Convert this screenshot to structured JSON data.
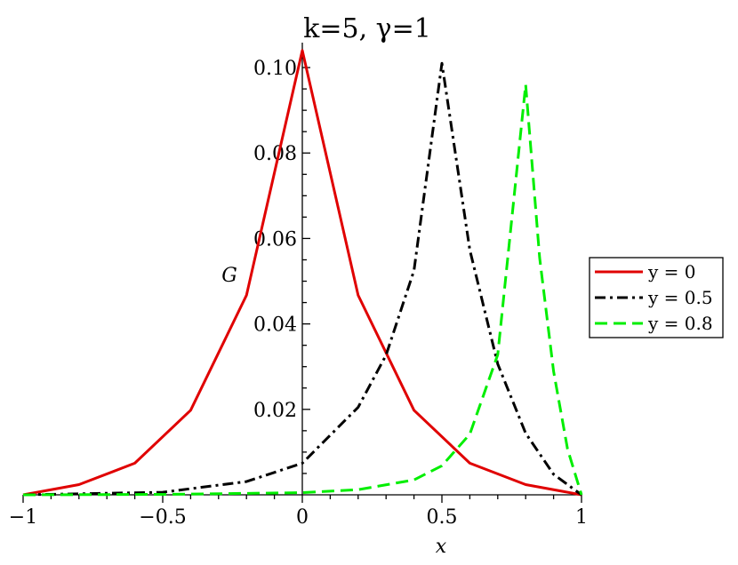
{
  "chart_data": {
    "type": "line",
    "title": "k=5,  γ=1",
    "xlabel": "x",
    "ylabel": "G",
    "xlim": [
      -1,
      1
    ],
    "ylim": [
      0,
      0.105
    ],
    "x_ticks": [
      -1,
      -0.5,
      0,
      0.5,
      1
    ],
    "x_tick_labels": [
      "−1",
      "−0.5",
      "0",
      "0.5",
      "1"
    ],
    "y_ticks": [
      0.02,
      0.04,
      0.06,
      0.08,
      0.1
    ],
    "y_tick_labels": [
      "0.02",
      "0.04",
      "0.06",
      "0.08",
      "0.10"
    ],
    "legend_position": "right",
    "series": [
      {
        "name": "y = 0",
        "color": "#e00000",
        "dash": "solid",
        "x": [
          -1,
          -0.8,
          -0.6,
          -0.4,
          -0.2,
          0,
          0.2,
          0.4,
          0.6,
          0.8,
          1
        ],
        "y": [
          0.0,
          0.0024,
          0.0074,
          0.0198,
          0.0467,
          0.104,
          0.0467,
          0.0198,
          0.0074,
          0.0024,
          0.0
        ]
      },
      {
        "name": "y = 0.5",
        "color": "#000000",
        "dash": "dashdot",
        "x": [
          -1,
          -0.5,
          -0.2,
          0,
          0.2,
          0.3,
          0.4,
          0.5,
          0.6,
          0.7,
          0.8,
          0.9,
          1
        ],
        "y": [
          0.0,
          0.0006,
          0.0031,
          0.0074,
          0.0205,
          0.0327,
          0.0525,
          0.101,
          0.0573,
          0.0306,
          0.0144,
          0.0048,
          0.0
        ]
      },
      {
        "name": "y = 0.8",
        "color": "#00ee00",
        "dash": "dashed",
        "x": [
          -1,
          -0.5,
          0,
          0.2,
          0.4,
          0.5,
          0.6,
          0.7,
          0.8,
          0.85,
          0.9,
          0.95,
          1
        ],
        "y": [
          0.0,
          0.0001,
          0.0005,
          0.0012,
          0.0035,
          0.0068,
          0.0142,
          0.0328,
          0.096,
          0.0555,
          0.0289,
          0.0107,
          0.0
        ]
      }
    ]
  }
}
